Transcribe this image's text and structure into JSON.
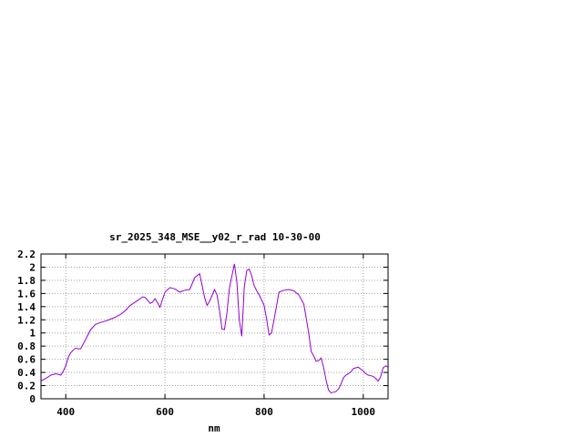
{
  "chart_data": {
    "type": "line",
    "title": "sr_2025_348_MSE__y02_r_rad 10-30-00",
    "xlabel": "nm",
    "ylabel": "",
    "xlim": [
      350,
      1050
    ],
    "ylim": [
      0,
      2.2
    ],
    "x_ticks": [
      400,
      600,
      800,
      1000
    ],
    "y_ticks": [
      0,
      0.2,
      0.4,
      0.6,
      0.8,
      1,
      1.2,
      1.4,
      1.6,
      1.8,
      2,
      2.2
    ],
    "x_tick_labels": [
      "400",
      "600",
      "800",
      "1000"
    ],
    "y_tick_labels": [
      "0",
      "0.2",
      "0.4",
      "0.6",
      "0.8",
      "1",
      "1.2",
      "1.4",
      "1.6",
      "1.8",
      "2",
      "2.2"
    ],
    "grid": true,
    "legend": "none",
    "series": [
      {
        "color": "#9400d3",
        "x": [
          350,
          360,
          370,
          380,
          390,
          395,
          400,
          405,
          410,
          415,
          420,
          425,
          430,
          440,
          450,
          460,
          470,
          480,
          490,
          500,
          510,
          520,
          530,
          540,
          550,
          555,
          560,
          565,
          570,
          575,
          580,
          585,
          590,
          600,
          610,
          620,
          630,
          640,
          650,
          660,
          670,
          680,
          685,
          690,
          700,
          705,
          710,
          715,
          720,
          725,
          730,
          740,
          745,
          750,
          755,
          760,
          765,
          770,
          775,
          780,
          785,
          790,
          800,
          805,
          810,
          815,
          820,
          830,
          840,
          850,
          860,
          870,
          880,
          890,
          895,
          900,
          905,
          910,
          915,
          920,
          925,
          930,
          935,
          940,
          945,
          950,
          955,
          960,
          965,
          970,
          975,
          980,
          985,
          990,
          995,
          1000,
          1005,
          1010,
          1015,
          1020,
          1025,
          1030,
          1035,
          1040,
          1045,
          1050
        ],
        "y": [
          0.27,
          0.31,
          0.36,
          0.38,
          0.36,
          0.42,
          0.5,
          0.63,
          0.7,
          0.74,
          0.77,
          0.76,
          0.76,
          0.9,
          1.05,
          1.13,
          1.16,
          1.18,
          1.21,
          1.24,
          1.28,
          1.34,
          1.42,
          1.47,
          1.52,
          1.55,
          1.54,
          1.5,
          1.45,
          1.47,
          1.52,
          1.46,
          1.39,
          1.62,
          1.69,
          1.67,
          1.62,
          1.65,
          1.66,
          1.84,
          1.9,
          1.54,
          1.42,
          1.48,
          1.66,
          1.58,
          1.35,
          1.06,
          1.05,
          1.3,
          1.68,
          2.05,
          1.78,
          1.2,
          0.95,
          1.7,
          1.95,
          1.97,
          1.87,
          1.72,
          1.64,
          1.58,
          1.42,
          1.22,
          0.97,
          1.0,
          1.2,
          1.62,
          1.65,
          1.66,
          1.64,
          1.58,
          1.44,
          1.0,
          0.72,
          0.65,
          0.57,
          0.58,
          0.62,
          0.48,
          0.28,
          0.13,
          0.09,
          0.1,
          0.11,
          0.15,
          0.22,
          0.32,
          0.36,
          0.38,
          0.41,
          0.46,
          0.47,
          0.48,
          0.45,
          0.42,
          0.38,
          0.36,
          0.35,
          0.34,
          0.31,
          0.27,
          0.33,
          0.47,
          0.5,
          0.48
        ]
      }
    ]
  }
}
